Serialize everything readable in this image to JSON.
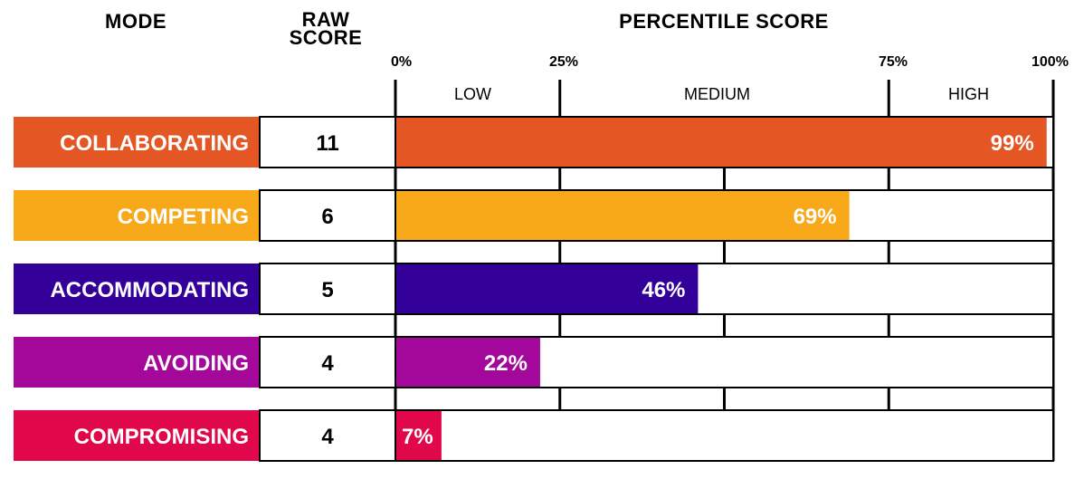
{
  "headers": {
    "mode": "MODE",
    "raw_score_1": "RAW",
    "raw_score_2": "SCORE",
    "percentile": "PERCENTILE SCORE"
  },
  "axis": {
    "ticks": [
      "0%",
      "25%",
      "75%",
      "100%"
    ],
    "bands": [
      "LOW",
      "MEDIUM",
      "HIGH"
    ]
  },
  "chart_data": {
    "type": "bar",
    "orientation": "horizontal",
    "title": "PERCENTILE SCORE",
    "categories": [
      "COLLABORATING",
      "COMPETING",
      "ACCOMMODATING",
      "AVOIDING",
      "COMPROMISING"
    ],
    "raw_scores": [
      "11",
      "6",
      "5",
      "4",
      "4"
    ],
    "values": [
      99,
      69,
      46,
      22,
      7
    ],
    "value_labels": [
      "99%",
      "69%",
      "46%",
      "22%",
      "7%"
    ],
    "colors": [
      "#e55625",
      "#f8a91a",
      "#330099",
      "#a3089a",
      "#e0084b"
    ],
    "xlim": [
      0,
      100
    ],
    "tick_values": [
      0,
      25,
      75,
      100
    ],
    "band_ranges": [
      [
        0,
        25
      ],
      [
        25,
        75
      ],
      [
        75,
        100
      ]
    ],
    "gridlines": [
      0,
      25,
      50,
      75,
      100
    ]
  }
}
